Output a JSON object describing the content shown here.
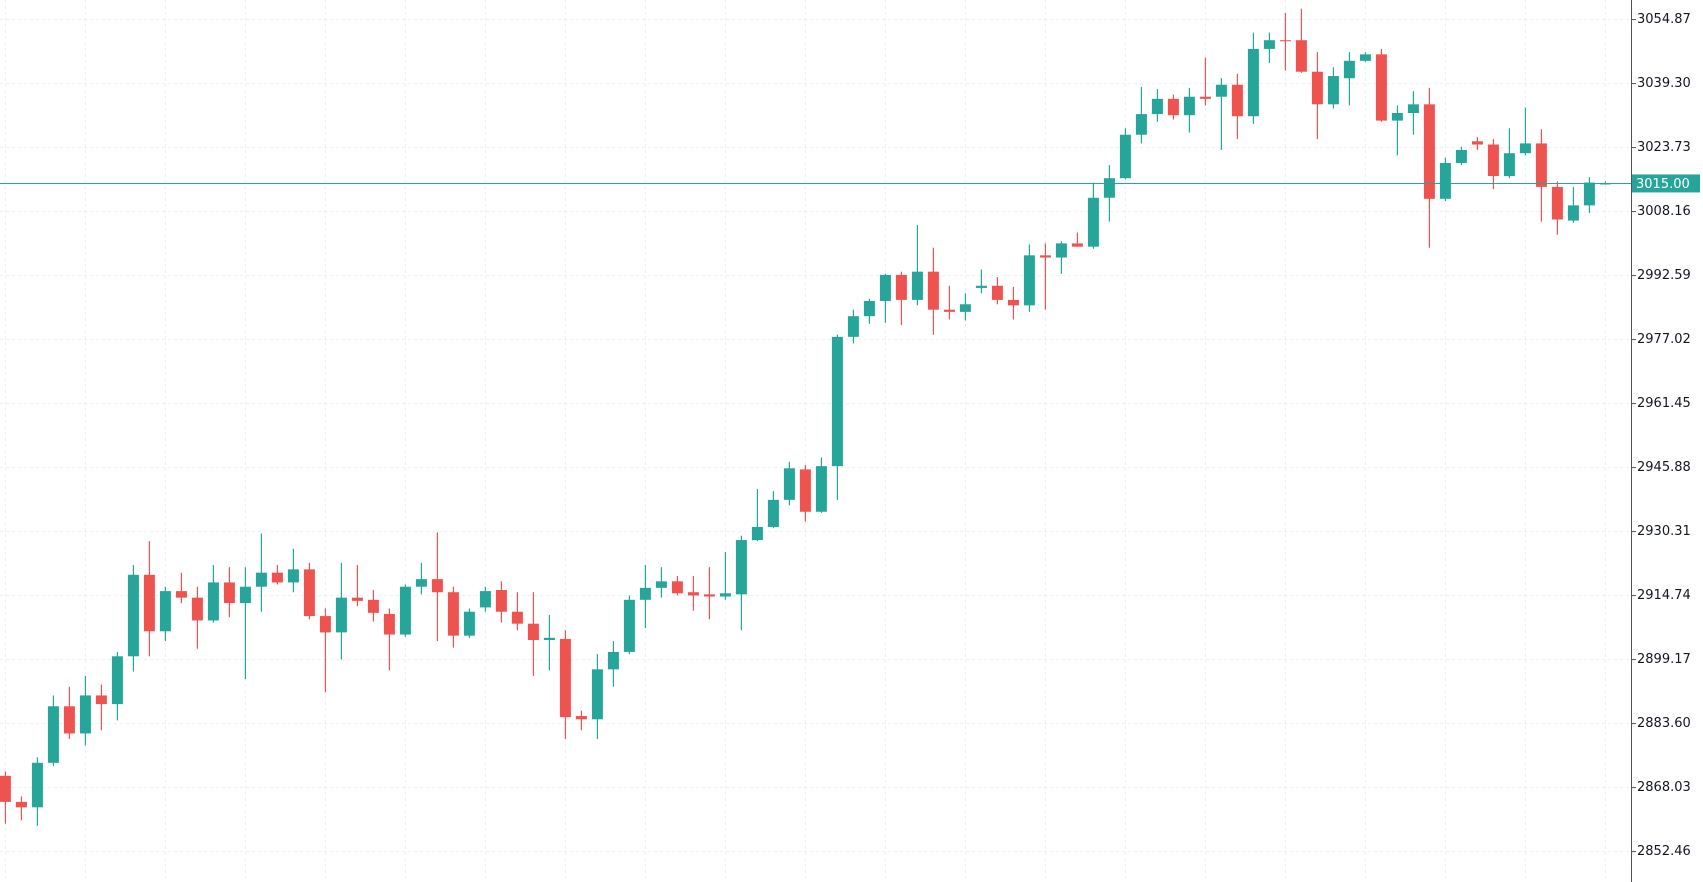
{
  "chart_data": {
    "type": "candlestick",
    "up_color": "#26a69a",
    "down_color": "#ef5350",
    "grid": true,
    "ylim": [
      2845.06,
      3059.63
    ],
    "yticks": [
      3054.87,
      {
        "value": 3039.3,
        "label": "3039.30"
      },
      3023.73,
      3008.16,
      2992.59,
      2977.02,
      2961.45,
      2945.88,
      2930.31,
      2914.74,
      2899.17,
      {
        "value": 2883.6,
        "label": "2883.60"
      },
      2868.03,
      2852.46
    ],
    "last_price": {
      "value": 3015,
      "label": "3015.00",
      "color": "#26a69a"
    },
    "open": [
      2870.89,
      2864.55,
      2863.23,
      2874.06,
      2887.81,
      2881.2,
      2890.45,
      2888.34,
      2899.97,
      2919.79,
      2906.05,
      2915.83,
      2914.24,
      2908.69,
      2917.94,
      2912.92,
      2916.89,
      2920.32,
      2917.94,
      2921.12,
      2909.75,
      2905.78,
      2914.24,
      2913.71,
      2910.28,
      2905.26,
      2916.89,
      2918.74,
      2915.56,
      2904.99,
      2911.86,
      2916.09,
      2910.81,
      2907.9,
      2903.93,
      2904.2,
      2885.43,
      2884.64,
      2896.8,
      2901.03,
      2913.71,
      2916.62,
      2918.21,
      2915.56,
      2915.04,
      2914.51,
      2915.04,
      2928.25,
      2931.43,
      2938.03,
      2945.44,
      2935.13,
      2946.23,
      2977.68,
      2982.71,
      2986.41,
      2992.75,
      2986.67,
      2993.54,
      2984.29,
      2983.76,
      2989.58,
      2990.11,
      2986.67,
      2985.35,
      2997.51,
      2996.98,
      3000.42,
      2999.62,
      3011.52,
      3016.28,
      3026.85,
      3031.87,
      3035.58,
      3031.61,
      3036.1,
      3036.1,
      3039.01,
      3031.35,
      3047.73,
      3049.85,
      3049.85,
      3042.18,
      3034.25,
      3040.6,
      3044.83,
      3046.41,
      3030.29,
      3032.14,
      3034.25,
      3011.26,
      3019.98,
      3025.27,
      3024.47,
      3016.81,
      3022.36,
      3024.74,
      3014.16,
      3005.97,
      3009.67,
      3014.96
    ],
    "high": [
      2871.95,
      2865.87,
      2875.39,
      2890.45,
      2892.57,
      2895.21,
      2893.1,
      2901.03,
      2922.17,
      2927.99,
      2916.89,
      2920.32,
      2916.89,
      2922.17,
      2921.64,
      2921.64,
      2929.84,
      2922.17,
      2926.14,
      2922.7,
      2911.6,
      2922.7,
      2922.17,
      2916.09,
      2911.6,
      2917.42,
      2922.7,
      2930.1,
      2916.89,
      2911.6,
      2916.89,
      2918.21,
      2915.56,
      2915.56,
      2910.01,
      2906.31,
      2886.75,
      2900.5,
      2903.67,
      2914.77,
      2922.17,
      2921.64,
      2919.53,
      2919.53,
      2921.64,
      2925.35,
      2929.31,
      2940.68,
      2940.15,
      2947.29,
      2946.49,
      2948.34,
      2978.21,
      2984.29,
      2986.94,
      2993.02,
      2993.54,
      3004.91,
      2999.36,
      2990.11,
      2988.26,
      2994.07,
      2992.22,
      2989.84,
      3000.15,
      3000.42,
      3000.95,
      3003.06,
      3015.22,
      3019.45,
      3028.44,
      3038.48,
      3037.95,
      3036.63,
      3038.22,
      3045.62,
      3040.6,
      3041.65,
      3051.7,
      3051.7,
      3056.46,
      3057.52,
      3046.94,
      3043.24,
      3046.94,
      3046.94,
      3047.73,
      3033.99,
      3037.43,
      3038.22,
      3021.3,
      3023.94,
      3026.32,
      3025.79,
      3028.44,
      3033.46,
      3028.17,
      3015.49,
      3014.16,
      3016.54,
      3015.49
    ],
    "low": [
      2859.26,
      2860.05,
      2858.73,
      2873.27,
      2879.88,
      2878.29,
      2881.99,
      2884.37,
      2896.27,
      2899.97,
      2903.67,
      2912.92,
      2901.82,
      2908.16,
      2909.48,
      2894.42,
      2910.81,
      2917.42,
      2915.56,
      2908.96,
      2891.25,
      2899.18,
      2912.13,
      2908.43,
      2896.53,
      2904.73,
      2915.04,
      2903.67,
      2902.08,
      2904.46,
      2910.81,
      2908.16,
      2906.31,
      2895.21,
      2896.53,
      2879.88,
      2881.99,
      2879.88,
      2892.57,
      2900.5,
      2906.84,
      2914.24,
      2914.77,
      2911.07,
      2908.96,
      2913.71,
      2906.31,
      2927.99,
      2931.16,
      2936.71,
      2932.75,
      2934.86,
      2938.03,
      2976.1,
      2980.86,
      2981.12,
      2980.59,
      2985.35,
      2978.21,
      2981.91,
      2981.65,
      2988.26,
      2985.61,
      2981.91,
      2983.76,
      2984.29,
      2993.02,
      2999.62,
      2999.1,
      3005.7,
      3016.01,
      3024.74,
      3030.02,
      3030.55,
      3027.38,
      3033.99,
      3023.15,
      3025.79,
      3029.5,
      3044.3,
      3042.45,
      3041.92,
      3025.79,
      3033.2,
      3033.99,
      3044.56,
      3030.02,
      3021.83,
      3026.85,
      2999.36,
      3010.73,
      3019.45,
      3023.15,
      3013.63,
      3016.28,
      3021.83,
      3005.7,
      3002.53,
      3005.44,
      3007.82,
      3014.69
    ],
    "close": [
      2864.55,
      2863.23,
      2874.06,
      2887.81,
      2881.2,
      2890.45,
      2888.34,
      2899.97,
      2919.79,
      2906.05,
      2915.83,
      2914.24,
      2908.69,
      2917.94,
      2912.92,
      2916.89,
      2920.32,
      2917.94,
      2921.12,
      2909.75,
      2905.78,
      2914.24,
      2913.45,
      2910.54,
      2905.26,
      2916.89,
      2918.74,
      2915.56,
      2904.99,
      2910.81,
      2915.83,
      2910.81,
      2907.9,
      2903.93,
      2904.46,
      2885.17,
      2884.64,
      2896.8,
      2901.03,
      2913.71,
      2916.62,
      2918.21,
      2915.3,
      2914.77,
      2914.51,
      2915.3,
      2928.25,
      2931.43,
      2938.03,
      2945.7,
      2935.13,
      2946.23,
      2977.68,
      2982.71,
      2986.41,
      2992.75,
      2986.67,
      2993.54,
      2984.29,
      2983.76,
      2985.61,
      2990.11,
      2986.67,
      2985.35,
      2997.51,
      2996.98,
      3000.42,
      2999.62,
      3011.52,
      3016.28,
      3026.85,
      3031.87,
      3035.58,
      3031.61,
      3036.1,
      3035.58,
      3039.01,
      3031.35,
      3047.73,
      3049.85,
      3049.59,
      3042.18,
      3034.25,
      3041.13,
      3044.83,
      3046.41,
      3030.29,
      3032.14,
      3034.25,
      3011.26,
      3019.98,
      3023.15,
      3024.47,
      3016.81,
      3022.36,
      3024.74,
      3014.16,
      3006.23,
      3009.67,
      3015.22,
      3015.0
    ]
  }
}
